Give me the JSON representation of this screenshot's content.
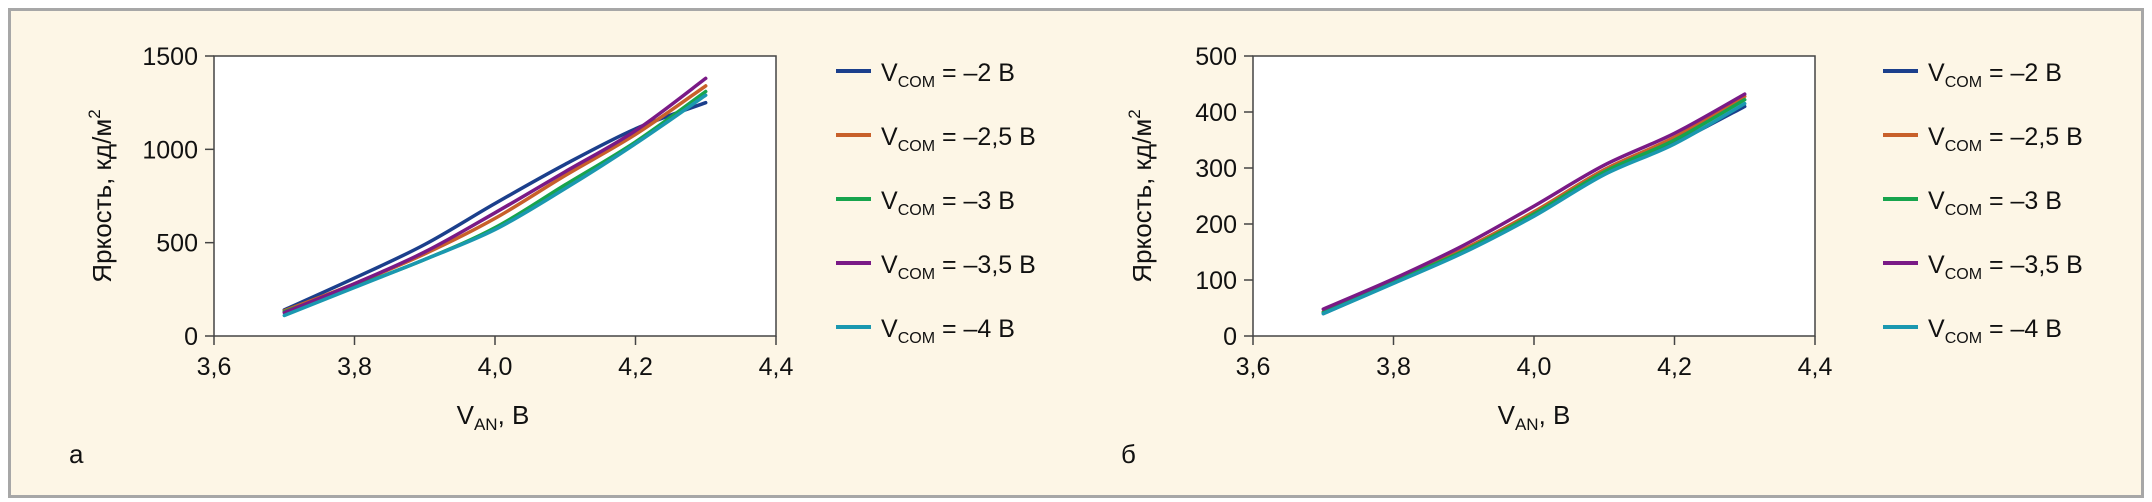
{
  "colors": {
    "series": [
      "#1b3f8c",
      "#c8602a",
      "#17a44d",
      "#7a1a86",
      "#1b98b0"
    ]
  },
  "chart_data": [
    {
      "type": "line",
      "panel_label": "а",
      "xlabel": {
        "main": "V",
        "sub": "AN",
        "unit": ", В"
      },
      "ylabel": {
        "main": "Яркость, кд/м",
        "sup": "2"
      },
      "xlim": [
        3.6,
        4.4
      ],
      "ylim": [
        0,
        1500
      ],
      "xticks": [
        "3,6",
        "3,8",
        "4,0",
        "4,2",
        "4,4"
      ],
      "yticks": [
        "0",
        "500",
        "1000",
        "1500"
      ],
      "x": [
        3.7,
        3.8,
        3.9,
        4.0,
        4.1,
        4.2,
        4.3
      ],
      "series": [
        {
          "name": "V",
          "sub": "COM",
          "eq": " = –2 В",
          "values": [
            140,
            310,
            490,
            710,
            920,
            1110,
            1250
          ]
        },
        {
          "name": "V",
          "sub": "COM",
          "eq": " = –2,5 В",
          "values": [
            135,
            280,
            440,
            630,
            860,
            1080,
            1340
          ]
        },
        {
          "name": "V",
          "sub": "COM",
          "eq": " = –3 В",
          "values": [
            130,
            265,
            410,
            580,
            810,
            1040,
            1310
          ]
        },
        {
          "name": "V",
          "sub": "COM",
          "eq": " = –3,5 В",
          "values": [
            125,
            280,
            450,
            660,
            880,
            1100,
            1380
          ]
        },
        {
          "name": "V",
          "sub": "COM",
          "eq": " = –4 В",
          "values": [
            110,
            260,
            410,
            570,
            790,
            1030,
            1290
          ]
        }
      ]
    },
    {
      "type": "line",
      "panel_label": "б",
      "xlabel": {
        "main": "V",
        "sub": "AN",
        "unit": ", В"
      },
      "ylabel": {
        "main": "Яркость, кд/м",
        "sup": "2"
      },
      "xlim": [
        3.6,
        4.4
      ],
      "ylim": [
        0,
        500
      ],
      "xticks": [
        "3,6",
        "3,8",
        "4,0",
        "4,2",
        "4,4"
      ],
      "yticks": [
        "0",
        "100",
        "200",
        "300",
        "400",
        "500"
      ],
      "x": [
        3.7,
        3.8,
        3.9,
        4.0,
        4.1,
        4.2,
        4.3
      ],
      "series": [
        {
          "name": "V",
          "sub": "COM",
          "eq": " = –2 В",
          "values": [
            40,
            95,
            150,
            215,
            290,
            345,
            410
          ]
        },
        {
          "name": "V",
          "sub": "COM",
          "eq": " = –2,5 В",
          "values": [
            43,
            98,
            155,
            222,
            297,
            355,
            428
          ]
        },
        {
          "name": "V",
          "sub": "COM",
          "eq": " = –3 В",
          "values": [
            42,
            97,
            152,
            218,
            293,
            350,
            422
          ]
        },
        {
          "name": "V",
          "sub": "COM",
          "eq": " = –3,5 В",
          "values": [
            48,
            102,
            162,
            232,
            305,
            362,
            432
          ]
        },
        {
          "name": "V",
          "sub": "COM",
          "eq": " = –4 В",
          "values": [
            40,
            94,
            149,
            214,
            288,
            343,
            415
          ]
        }
      ]
    }
  ]
}
